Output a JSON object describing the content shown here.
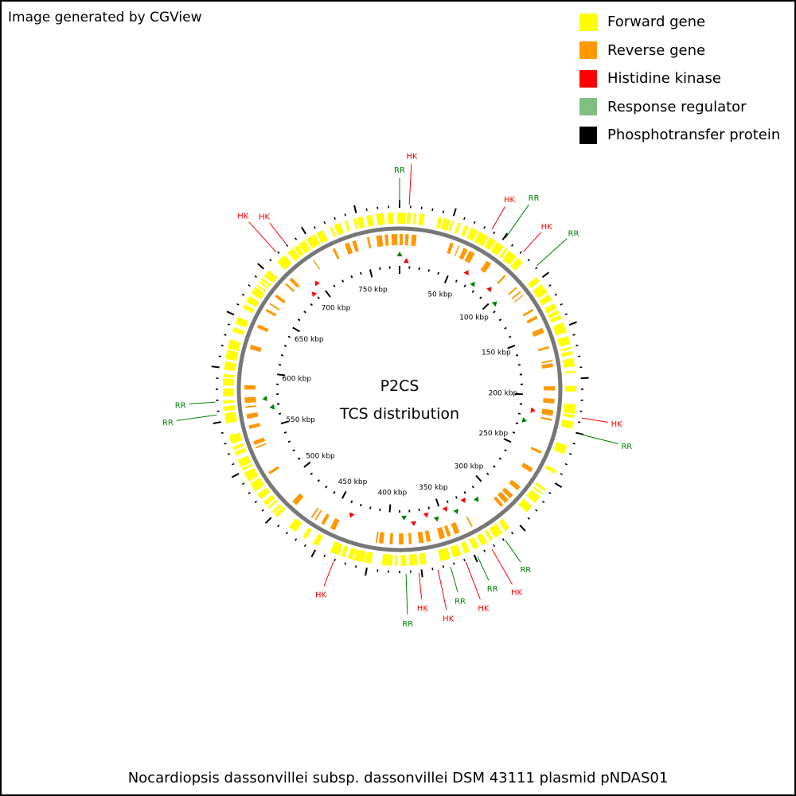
{
  "credit": "Image generated by CGView",
  "legend": [
    {
      "label": "Forward gene",
      "color": "#ffff00"
    },
    {
      "label": "Reverse gene",
      "color": "#ff9900"
    },
    {
      "label": "Histidine kinase",
      "color": "#ff0000"
    },
    {
      "label": "Response regulator",
      "color": "#7fbf7f"
    },
    {
      "label": "Phosphotransfer protein",
      "color": "#000000"
    }
  ],
  "center": {
    "line1": "P2CS",
    "line2": "TCS distribution"
  },
  "footer": "Nocardiopsis dassonvillei subsp. dassonvillei DSM 43111 plasmid pNDAS01",
  "colors": {
    "forward": "#ffff00",
    "reverse": "#ff9900",
    "hk": "#ff0000",
    "rr": "#008000",
    "backbone": "#777777"
  },
  "ticks": [
    {
      "label": "50 kbp",
      "angle": 23
    },
    {
      "label": "100 kbp",
      "angle": 46
    },
    {
      "label": "150 kbp",
      "angle": 69
    },
    {
      "label": "200 kbp",
      "angle": 92
    },
    {
      "label": "250 kbp",
      "angle": 115
    },
    {
      "label": "300 kbp",
      "angle": 138
    },
    {
      "label": "350 kbp",
      "angle": 161
    },
    {
      "label": "400 kbp",
      "angle": 184
    },
    {
      "label": "450 kbp",
      "angle": 207
    },
    {
      "label": "500 kbp",
      "angle": 230
    },
    {
      "label": "550 kbp",
      "angle": 253
    },
    {
      "label": "600 kbp",
      "angle": 276
    },
    {
      "label": "650 kbp",
      "angle": 299
    },
    {
      "label": "700 kbp",
      "angle": 322
    },
    {
      "label": "750 kbp",
      "angle": 345
    }
  ],
  "callouts": [
    {
      "label": "RR",
      "type": "rr",
      "angle": 0
    },
    {
      "label": "HK",
      "type": "hk",
      "angle": 3
    },
    {
      "label": "HK",
      "type": "hk",
      "angle": 30
    },
    {
      "label": "RR",
      "type": "rr",
      "angle": 35
    },
    {
      "label": "HK",
      "type": "hk",
      "angle": 42
    },
    {
      "label": "RR",
      "type": "rr",
      "angle": 48
    },
    {
      "label": "HK",
      "type": "hk",
      "angle": 99
    },
    {
      "label": "RR",
      "type": "rr",
      "angle": 104
    },
    {
      "label": "RR",
      "type": "rr",
      "angle": 145
    },
    {
      "label": "HK",
      "type": "hk",
      "angle": 150
    },
    {
      "label": "RR",
      "type": "rr",
      "angle": 155
    },
    {
      "label": "HK",
      "type": "hk",
      "angle": 159
    },
    {
      "label": "RR",
      "type": "rr",
      "angle": 164
    },
    {
      "label": "HK",
      "type": "hk",
      "angle": 168
    },
    {
      "label": "HK",
      "type": "hk",
      "angle": 174
    },
    {
      "label": "RR",
      "type": "rr",
      "angle": 178
    },
    {
      "label": "HK",
      "type": "hk",
      "angle": 201
    },
    {
      "label": "RR",
      "type": "rr",
      "angle": 262
    },
    {
      "label": "RR",
      "type": "rr",
      "angle": 266
    },
    {
      "label": "HK",
      "type": "hk",
      "angle": 318
    },
    {
      "label": "HK",
      "type": "hk",
      "angle": 322
    }
  ]
}
